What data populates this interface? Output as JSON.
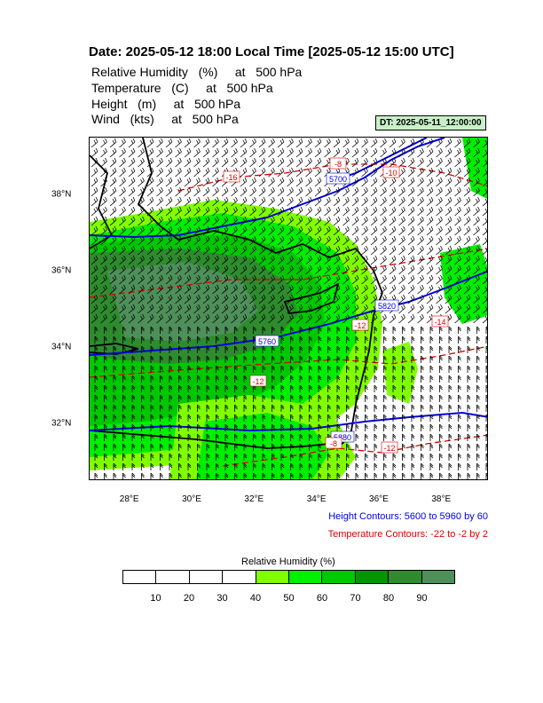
{
  "title": "Date: 2025-05-12  18:00 Local Time [2025-05-12  15:00 UTC]",
  "variables": [
    {
      "name": "Relative Humidity",
      "unit": "(%)",
      "level": "at   500 hPa"
    },
    {
      "name": "Temperature",
      "unit": "(C)",
      "level": "at   500 hPa"
    },
    {
      "name": "Height",
      "unit": "(m)",
      "level": "at   500 hPa"
    },
    {
      "name": "Wind",
      "unit": "(kts)",
      "level": "at   500 hPa"
    }
  ],
  "dt_label": "DT: 2025-05-11_12:00:00",
  "map": {
    "lon_range": [
      26.7,
      39.5
    ],
    "lat_range": [
      30.5,
      39.5
    ],
    "x_ticks": [
      "28°E",
      "30°E",
      "32°E",
      "34°E",
      "36°E",
      "38°E"
    ],
    "x_tick_values": [
      28,
      30,
      32,
      34,
      36,
      38
    ],
    "y_ticks": [
      "38°N",
      "36°N",
      "34°N",
      "32°N"
    ],
    "y_tick_values": [
      38,
      36,
      34,
      32
    ],
    "height_contour_labels": [
      "5880",
      "5820",
      "5760",
      "5700"
    ],
    "temp_contour_labels": [
      "-16",
      "-12",
      "-12",
      "-14",
      "-10",
      "-8",
      "-12",
      "-8"
    ]
  },
  "height_note": "Height Contours: 5600 to 5960 by 60",
  "temp_note": "Temperature Contours: -22 to -2 by 2",
  "colorbar": {
    "title": "Relative Humidity  (%)",
    "labels": [
      "10",
      "20",
      "30",
      "40",
      "50",
      "60",
      "70",
      "80",
      "90"
    ],
    "colors": [
      "#ffffff",
      "#ffffff",
      "#ffffff",
      "#ffffff",
      "#80ff00",
      "#00ee00",
      "#00c800",
      "#009600",
      "#2e8b2e",
      "#4e8f5a"
    ]
  },
  "colors": {
    "height_contour": "#0000dd",
    "temp_contour": "#dd0000",
    "coast": "#000000"
  }
}
